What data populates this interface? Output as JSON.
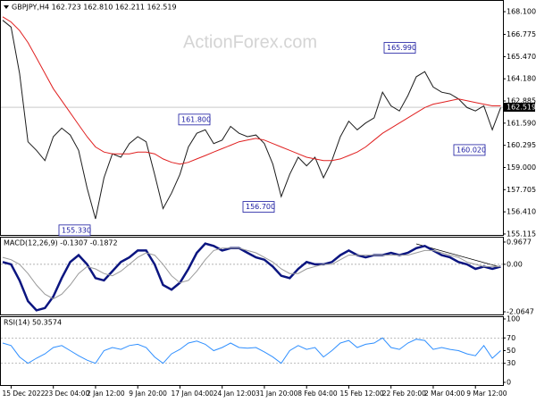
{
  "chart_data": [
    {
      "type": "line",
      "title": "GBPJPY,H4 162.723 162.810 162.211 162.519",
      "watermark": "ActionForex.com",
      "ylim": [
        155.06,
        168.73
      ],
      "yticks": [
        {
          "value": 168.1,
          "label": "168.100"
        },
        {
          "value": 166.775,
          "label": "166.775"
        },
        {
          "value": 165.47,
          "label": "165.470"
        },
        {
          "value": 164.18,
          "label": "164.180"
        },
        {
          "value": 162.885,
          "label": "162.885"
        },
        {
          "value": 161.59,
          "label": "161.590"
        },
        {
          "value": 160.295,
          "label": "160.295"
        },
        {
          "value": 159.0,
          "label": "159.000"
        },
        {
          "value": 157.705,
          "label": "157.705"
        },
        {
          "value": 156.41,
          "label": "156.410"
        },
        {
          "value": 155.115,
          "label": "155.115"
        }
      ],
      "last_price": 162.519,
      "annotations": [
        {
          "value": 155.33,
          "label": "155.330"
        },
        {
          "value": 161.8,
          "label": "161.800"
        },
        {
          "value": 156.7,
          "label": "156.700"
        },
        {
          "value": 165.99,
          "label": "165.990"
        },
        {
          "value": 160.02,
          "label": "160.020"
        }
      ],
      "series": [
        {
          "name": "GBPJPY",
          "color": "#1c1c1c",
          "width": 1,
          "values": [
            167.6,
            167.2,
            164.5,
            160.5,
            160.0,
            159.4,
            160.8,
            161.3,
            160.9,
            160.0,
            157.8,
            156.0,
            158.4,
            159.8,
            159.6,
            160.4,
            160.8,
            160.5,
            158.6,
            156.6,
            157.5,
            158.6,
            160.2,
            161.0,
            161.2,
            160.4,
            160.6,
            161.4,
            161.0,
            160.8,
            160.9,
            160.4,
            159.2,
            157.3,
            158.6,
            159.6,
            159.1,
            159.6,
            158.4,
            159.4,
            160.8,
            161.7,
            161.2,
            161.6,
            161.9,
            163.4,
            162.6,
            162.3,
            163.2,
            164.3,
            164.6,
            163.7,
            163.4,
            163.3,
            163.0,
            162.5,
            162.3,
            162.6,
            161.2,
            162.5
          ]
        },
        {
          "name": "MA",
          "color": "#e02020",
          "width": 1,
          "values": [
            167.8,
            167.5,
            167.0,
            166.3,
            165.4,
            164.5,
            163.6,
            162.9,
            162.2,
            161.5,
            160.8,
            160.2,
            159.9,
            159.8,
            159.8,
            159.8,
            159.9,
            159.9,
            159.8,
            159.5,
            159.3,
            159.2,
            159.3,
            159.5,
            159.7,
            159.9,
            160.1,
            160.3,
            160.5,
            160.6,
            160.7,
            160.6,
            160.4,
            160.2,
            160.0,
            159.8,
            159.6,
            159.5,
            159.4,
            159.4,
            159.5,
            159.7,
            159.9,
            160.2,
            160.6,
            161.0,
            161.3,
            161.6,
            161.9,
            162.2,
            162.5,
            162.7,
            162.8,
            162.9,
            163.0,
            162.9,
            162.8,
            162.7,
            162.6,
            162.6
          ]
        }
      ]
    },
    {
      "type": "line",
      "title": "MACD(12,26,9) -0.1307 -0.1872",
      "ylim": [
        -2.18,
        1.16
      ],
      "yticks": [
        0.9677,
        {
          "value": 0,
          "label": "0.00"
        },
        -2.0647
      ],
      "levels": [
        0
      ],
      "series": [
        {
          "name": "MACD",
          "color": "#0b1580",
          "width": 2.5,
          "values": [
            0.1,
            0.0,
            -0.7,
            -1.6,
            -2.0,
            -1.9,
            -1.4,
            -0.6,
            0.1,
            0.4,
            0.0,
            -0.6,
            -0.7,
            -0.3,
            0.1,
            0.3,
            0.6,
            0.6,
            0.0,
            -0.9,
            -1.1,
            -0.8,
            -0.2,
            0.5,
            0.9,
            0.8,
            0.6,
            0.7,
            0.7,
            0.5,
            0.3,
            0.2,
            -0.1,
            -0.5,
            -0.6,
            -0.2,
            0.1,
            0.0,
            0.0,
            0.1,
            0.4,
            0.6,
            0.4,
            0.3,
            0.4,
            0.4,
            0.5,
            0.4,
            0.5,
            0.7,
            0.8,
            0.6,
            0.4,
            0.3,
            0.1,
            0.0,
            -0.2,
            -0.1,
            -0.2,
            -0.1
          ]
        },
        {
          "name": "Signal",
          "color": "#9a9a9a",
          "width": 1,
          "values": [
            0.3,
            0.2,
            0.0,
            -0.4,
            -0.9,
            -1.3,
            -1.5,
            -1.3,
            -0.9,
            -0.4,
            -0.1,
            -0.2,
            -0.4,
            -0.5,
            -0.3,
            0.0,
            0.3,
            0.5,
            0.4,
            0.0,
            -0.5,
            -0.8,
            -0.7,
            -0.3,
            0.2,
            0.6,
            0.7,
            0.7,
            0.7,
            0.6,
            0.5,
            0.3,
            0.1,
            -0.2,
            -0.4,
            -0.4,
            -0.2,
            -0.1,
            0.0,
            0.0,
            0.2,
            0.4,
            0.4,
            0.4,
            0.4,
            0.4,
            0.4,
            0.4,
            0.4,
            0.5,
            0.6,
            0.6,
            0.5,
            0.4,
            0.3,
            0.1,
            0.0,
            -0.1,
            -0.1,
            -0.1
          ]
        }
      ]
    },
    {
      "type": "line",
      "title": "RSI(14) 50.3574",
      "ylim": [
        -4.2,
        102.8
      ],
      "yticks": [
        100,
        70,
        50,
        30,
        0
      ],
      "levels": [
        70,
        30
      ],
      "categories": [
        null,
        "15 Dec 2022",
        null,
        null,
        null,
        null,
        "23 Dec 04:00",
        null,
        null,
        null,
        null,
        "2 Jan 12:00",
        null,
        null,
        null,
        null,
        "9 Jan 20:00",
        null,
        null,
        null,
        null,
        "17 Jan 04:00",
        null,
        null,
        null,
        null,
        "24 Jan 12:00",
        null,
        null,
        null,
        null,
        "31 Jan 20:00",
        null,
        null,
        null,
        null,
        "8 Feb 04:00",
        null,
        null,
        null,
        null,
        "15 Feb 12:00",
        null,
        null,
        null,
        null,
        "22 Feb 20:00",
        null,
        null,
        null,
        null,
        "2 Mar 04:00",
        null,
        null,
        null,
        null,
        "9 Mar 12:00",
        null,
        null,
        null
      ],
      "series": [
        {
          "name": "RSI",
          "color": "#2f8fff",
          "width": 1,
          "values": [
            62,
            58,
            40,
            30,
            38,
            45,
            55,
            58,
            50,
            42,
            35,
            30,
            50,
            55,
            52,
            58,
            60,
            55,
            40,
            30,
            45,
            52,
            62,
            65,
            60,
            50,
            55,
            62,
            55,
            54,
            55,
            48,
            40,
            30,
            50,
            58,
            52,
            55,
            40,
            50,
            62,
            66,
            55,
            60,
            62,
            70,
            55,
            52,
            62,
            68,
            66,
            52,
            55,
            52,
            50,
            45,
            42,
            58,
            38,
            50
          ]
        }
      ]
    }
  ]
}
